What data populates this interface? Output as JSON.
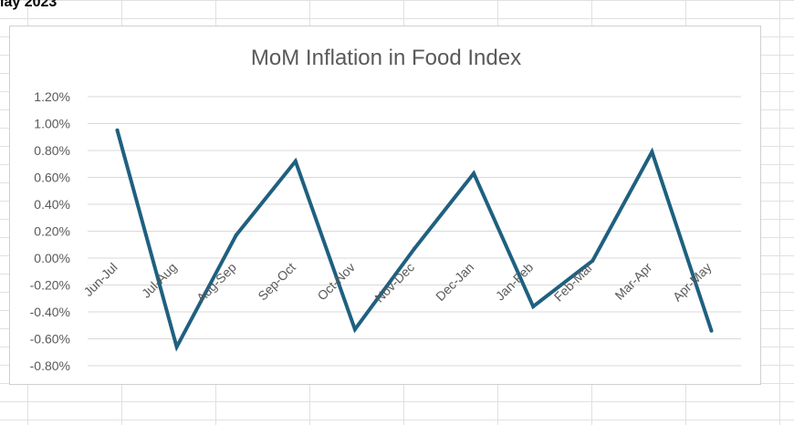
{
  "sheet": {
    "cell_text": "lay 2023"
  },
  "chart_data": {
    "type": "line",
    "title": "MoM Inflation in Food Index",
    "categories": [
      "Jun-Jul",
      "Jul-Aug",
      "Aug-Sep",
      "Sep-Oct",
      "Oct-Nov",
      "Nov-Dec",
      "Dec-Jan",
      "Jan-Feb",
      "Feb-Mar",
      "Mar-Apr",
      "Apr-May"
    ],
    "series": [
      {
        "values": [
          0.95,
          -0.66,
          0.17,
          0.72,
          -0.53,
          0.07,
          0.63,
          -0.36,
          -0.02,
          0.79,
          -0.54
        ]
      }
    ],
    "ylim": [
      -0.8,
      1.2
    ],
    "y_ticks": [
      "1.20%",
      "1.00%",
      "0.80%",
      "0.60%",
      "0.40%",
      "0.20%",
      "0.00%",
      "-0.20%",
      "-0.40%",
      "-0.60%",
      "-0.80%"
    ],
    "xlabel": "",
    "ylabel": "",
    "grid": true,
    "legend": "none",
    "colors": {
      "line": "#1f6080",
      "gridline": "#d9d9d9",
      "text": "#595959",
      "title": "#595959"
    }
  }
}
